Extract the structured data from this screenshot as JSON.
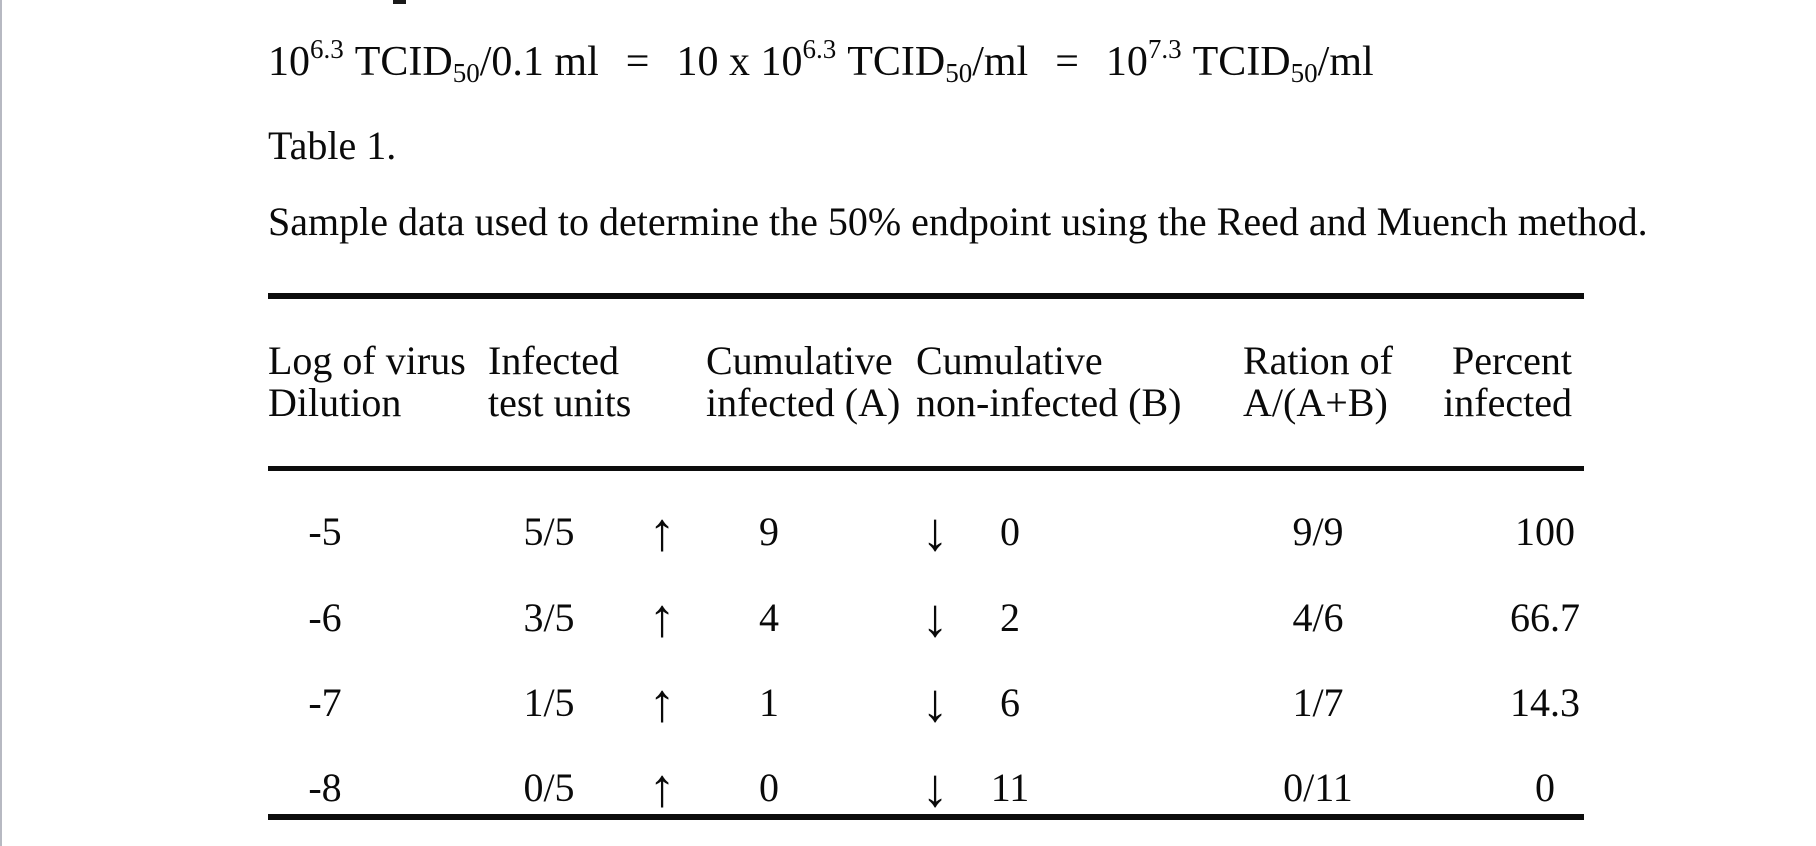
{
  "page": {
    "table_label": "Table 1.",
    "caption": "Sample data used to determine the 50% endpoint using the Reed and Muench method."
  },
  "formula": {
    "term1_base": "10",
    "term1_sup": "6.3",
    "term1_name": "TCID",
    "term1_sub": "50",
    "term1_tail": "/0.1 ml",
    "equals": "=",
    "term2_base": "10 x 10",
    "term2_sup": "6.3",
    "term2_name": "TCID",
    "term2_sub": "50",
    "term2_tail": "/ml",
    "term3_base": "10",
    "term3_sup": "7.3",
    "term3_name": "TCID",
    "term3_sub": "50",
    "term3_tail": "/ml"
  },
  "table": {
    "headers": [
      {
        "line1": "Log of virus",
        "line2": "Dilution"
      },
      {
        "line1": "Infected",
        "line2": "test units"
      },
      {
        "line1": "Cumulative",
        "line2": "infected (A)"
      },
      {
        "line1": "Cumulative",
        "line2": "non-infected (B)"
      },
      {
        "line1": "Ration of",
        "line2": "A/(A+B)"
      },
      {
        "line1": "Percent",
        "line2": "infected"
      }
    ],
    "arrow_up": "↑",
    "arrow_down": "↓",
    "rows": [
      {
        "dilution": "-5",
        "units": "5/5",
        "cum_infected": "9",
        "cum_noninfected": "0",
        "ratio": "9/9",
        "percent": "100"
      },
      {
        "dilution": "-6",
        "units": "3/5",
        "cum_infected": "4",
        "cum_noninfected": "2",
        "ratio": "4/6",
        "percent": "66.7"
      },
      {
        "dilution": "-7",
        "units": "1/5",
        "cum_infected": "1",
        "cum_noninfected": "6",
        "ratio": "1/7",
        "percent": "14.3"
      },
      {
        "dilution": "-8",
        "units": "0/5",
        "cum_infected": "0",
        "cum_noninfected": "11",
        "ratio": "0/11",
        "percent": "0"
      }
    ]
  }
}
